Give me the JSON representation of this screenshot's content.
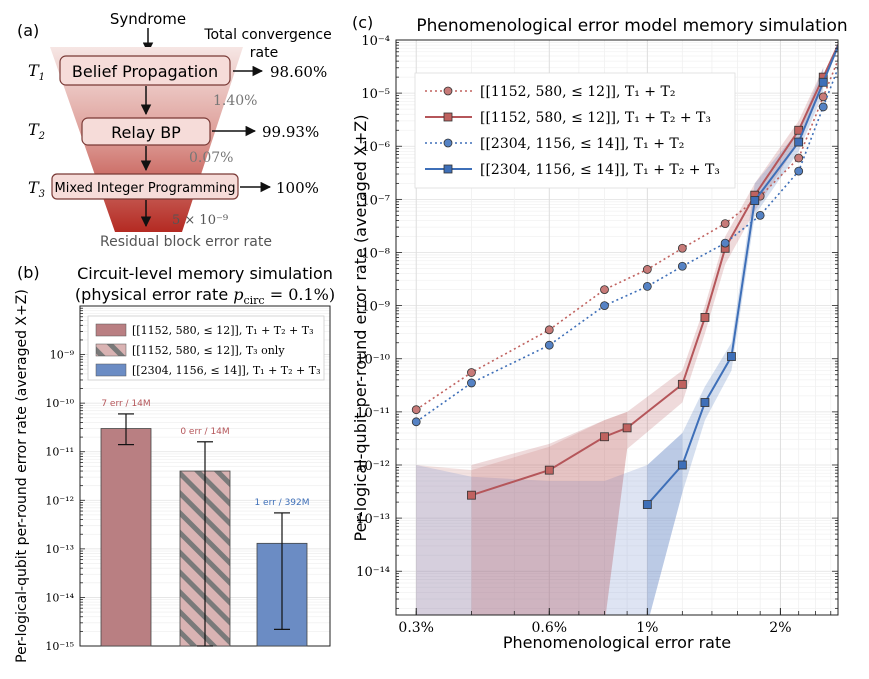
{
  "panel_a": {
    "label": "(a)",
    "top_label": "Syndrome",
    "right_title_line1": "Total convergence",
    "right_title_line2": "rate",
    "bottom_label": "Residual block error rate",
    "stages": [
      {
        "time": "T",
        "time_sub": "1",
        "name": "Belief Propagation",
        "rate": "98.60%",
        "residual": "1.40%"
      },
      {
        "time": "T",
        "time_sub": "2",
        "name": "Relay BP",
        "rate": "99.93%",
        "residual": "0.07%"
      },
      {
        "time": "T",
        "time_sub": "3",
        "name": "Mixed Integer Programming",
        "rate": "100%",
        "residual": "5 × 10⁻⁹"
      }
    ]
  },
  "panel_b": {
    "label": "(b)",
    "title_line1": "Circuit-level memory simulation",
    "title_line2": "(physical error rate p_circ = 0.1%)",
    "title_line2_prefix": "(physical error rate ",
    "title_line2_var": "p",
    "title_line2_sub": "circ",
    "title_line2_suffix": " = 0.1%)",
    "ylabel": "Per-logical-qubit per-round error rate (averaged X+Z)",
    "legend": [
      "[[1152, 580, ≤ 12]], T₁ + T₂ + T₃",
      "[[1152, 580, ≤ 12]], T₃ only",
      "[[2304, 1156, ≤ 14]], T₁ + T₂ + T₃"
    ],
    "ticks": [
      "10⁻¹⁵",
      "10⁻¹⁴",
      "10⁻¹³",
      "10⁻¹²",
      "10⁻¹¹",
      "10⁻¹⁰",
      "10⁻⁹"
    ],
    "chart_data": {
      "type": "bar",
      "yscale": "log",
      "ylim": [
        1e-15,
        1e-08
      ],
      "categories": [
        "[[1152, 580, ≤ 12]], T₁ + T₂ + T₃",
        "[[1152, 580, ≤ 12]], T₃ only",
        "[[2304, 1156, ≤ 14]], T₁ + T₂ + T₃"
      ],
      "values": [
        3e-11,
        4e-12,
        1.3e-13
      ],
      "err_low": [
        1.4e-11,
        1e-15,
        2.2e-15
      ],
      "err_high": [
        6e-11,
        1.6e-11,
        5.5e-13
      ],
      "annotations": [
        "7 err / 14M",
        "0 err / 14M",
        "1 err / 392M"
      ],
      "colors": [
        "#b97f82",
        "#d9b3b3",
        "#6b8cc4"
      ],
      "hatched": [
        false,
        true,
        false
      ]
    }
  },
  "panel_c": {
    "label": "(c)",
    "title": "Phenomenological error model memory simulation",
    "xlabel": "Phenomenological error rate",
    "ylabel": "Per-logical-qubit per-round error rate (averaged X+Z)",
    "xticks": [
      "0.3%",
      "0.6%",
      "1%",
      "2%"
    ],
    "yticks": [
      "10⁻¹⁴",
      "10⁻¹³",
      "10⁻¹²",
      "10⁻¹¹",
      "10⁻¹⁰",
      "10⁻⁹",
      "10⁻⁸",
      "10⁻⁷",
      "10⁻⁶",
      "10⁻⁵",
      "10⁻⁴"
    ],
    "chart_data": {
      "type": "line",
      "xscale": "log",
      "yscale": "log",
      "xlim": [
        0.0027,
        0.027
      ],
      "ylim": [
        1.5e-15,
        0.0001
      ],
      "legend_position": "top-left",
      "grid": true,
      "series": [
        {
          "name": "[[1152, 580, ≤ 12]], T₁ + T₂",
          "color": "#c0625f",
          "style": "dotted",
          "marker": "circle",
          "x": [
            0.003,
            0.004,
            0.006,
            0.008,
            0.01,
            0.012,
            0.015,
            0.018,
            0.022,
            0.025
          ],
          "y": [
            1.1e-11,
            5.5e-11,
            3.5e-10,
            2e-09,
            4.8e-09,
            1.2e-08,
            3.5e-08,
            1.15e-07,
            6e-07,
            8.5e-06
          ]
        },
        {
          "name": "[[1152, 580, ≤ 12]], T₁ + T₂ + T₃",
          "color": "#b5565a",
          "style": "solid",
          "marker": "square",
          "x": [
            0.004,
            0.006,
            0.008,
            0.009,
            0.012,
            0.0135,
            0.015,
            0.0175,
            0.022,
            0.025
          ],
          "y": [
            2.7e-13,
            8e-13,
            3.4e-12,
            5e-12,
            3.3e-11,
            6e-10,
            1.2e-08,
            1.2e-07,
            2e-06,
            2e-05
          ],
          "band_low": [
            1e-15,
            1e-15,
            1e-15,
            2e-12,
            1.5e-11,
            3e-10,
            6e-09,
            6e-08,
            1.2e-06,
            1.3e-05
          ],
          "band_high": [
            1e-12,
            2.5e-12,
            7e-12,
            1e-11,
            6e-11,
            1e-09,
            2e-08,
            2e-07,
            3e-06,
            3e-05
          ]
        },
        {
          "name": "[[2304, 1156, ≤ 14]], T₁ + T₂",
          "color": "#3e6fb8",
          "style": "dotted",
          "marker": "circle",
          "x": [
            0.003,
            0.004,
            0.006,
            0.008,
            0.01,
            0.012,
            0.015,
            0.018,
            0.022,
            0.025
          ],
          "y": [
            6.5e-12,
            3.5e-11,
            1.8e-10,
            1e-09,
            2.3e-09,
            5.5e-09,
            1.5e-08,
            5e-08,
            3.4e-07,
            5.5e-06
          ]
        },
        {
          "name": "[[2304, 1156, ≤ 14]], T₁ + T₂ + T₃",
          "color": "#3e6fb8",
          "style": "solid",
          "marker": "square",
          "x": [
            0.01,
            0.012,
            0.0135,
            0.0155,
            0.0175,
            0.022,
            0.025
          ],
          "y": [
            1.8e-13,
            1e-12,
            1.5e-11,
            1.1e-10,
            9.5e-08,
            1.2e-06,
            1.6e-05
          ],
          "band_low": [
            1e-15,
            3e-13,
            7e-12,
            6e-11,
            5e-08,
            8e-07,
            1e-05
          ],
          "band_high": [
            1e-12,
            4e-12,
            3e-11,
            2e-10,
            2e-07,
            2e-06,
            3e-05
          ]
        }
      ],
      "bands_extra": [
        {
          "series": 0,
          "note": "wide pale band at low x"
        }
      ]
    }
  },
  "colors": {
    "red": "#b5565a",
    "blue": "#3e6fb8",
    "funnel_top": "#f3e0de",
    "funnel_bottom": "#b8302a"
  }
}
